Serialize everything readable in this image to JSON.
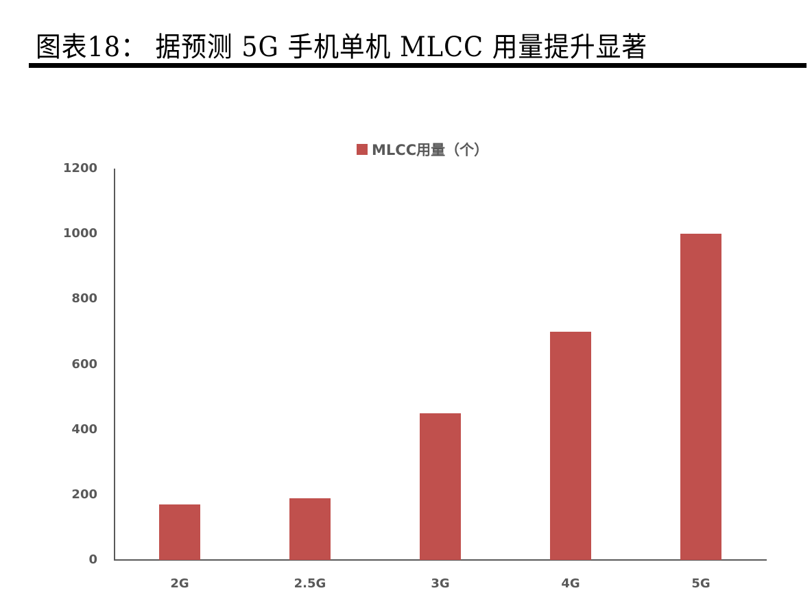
{
  "header": {
    "title": "图表18：  据预测 5G 手机单机 MLCC 用量提升显著"
  },
  "chart_data": {
    "type": "bar",
    "title": "",
    "categories": [
      "2G",
      "2.5G",
      "3G",
      "4G",
      "5G"
    ],
    "series": [
      {
        "name": "MLCC用量（个）",
        "values": [
          170,
          190,
          450,
          700,
          1000
        ],
        "color": "#C0504D"
      }
    ],
    "values": [
      170,
      190,
      450,
      700,
      1000
    ],
    "xlabel": "",
    "ylabel": "",
    "ylim": [
      0,
      1200
    ],
    "yticks": [
      0,
      200,
      400,
      600,
      800,
      1000,
      1200
    ],
    "grid": false,
    "legend_position": "top"
  },
  "legend": {
    "label": "MLCC用量（个）",
    "color": "#C0504D"
  },
  "colors": {
    "bar": "#C0504D",
    "axis": "#595959",
    "text": "#595959"
  }
}
